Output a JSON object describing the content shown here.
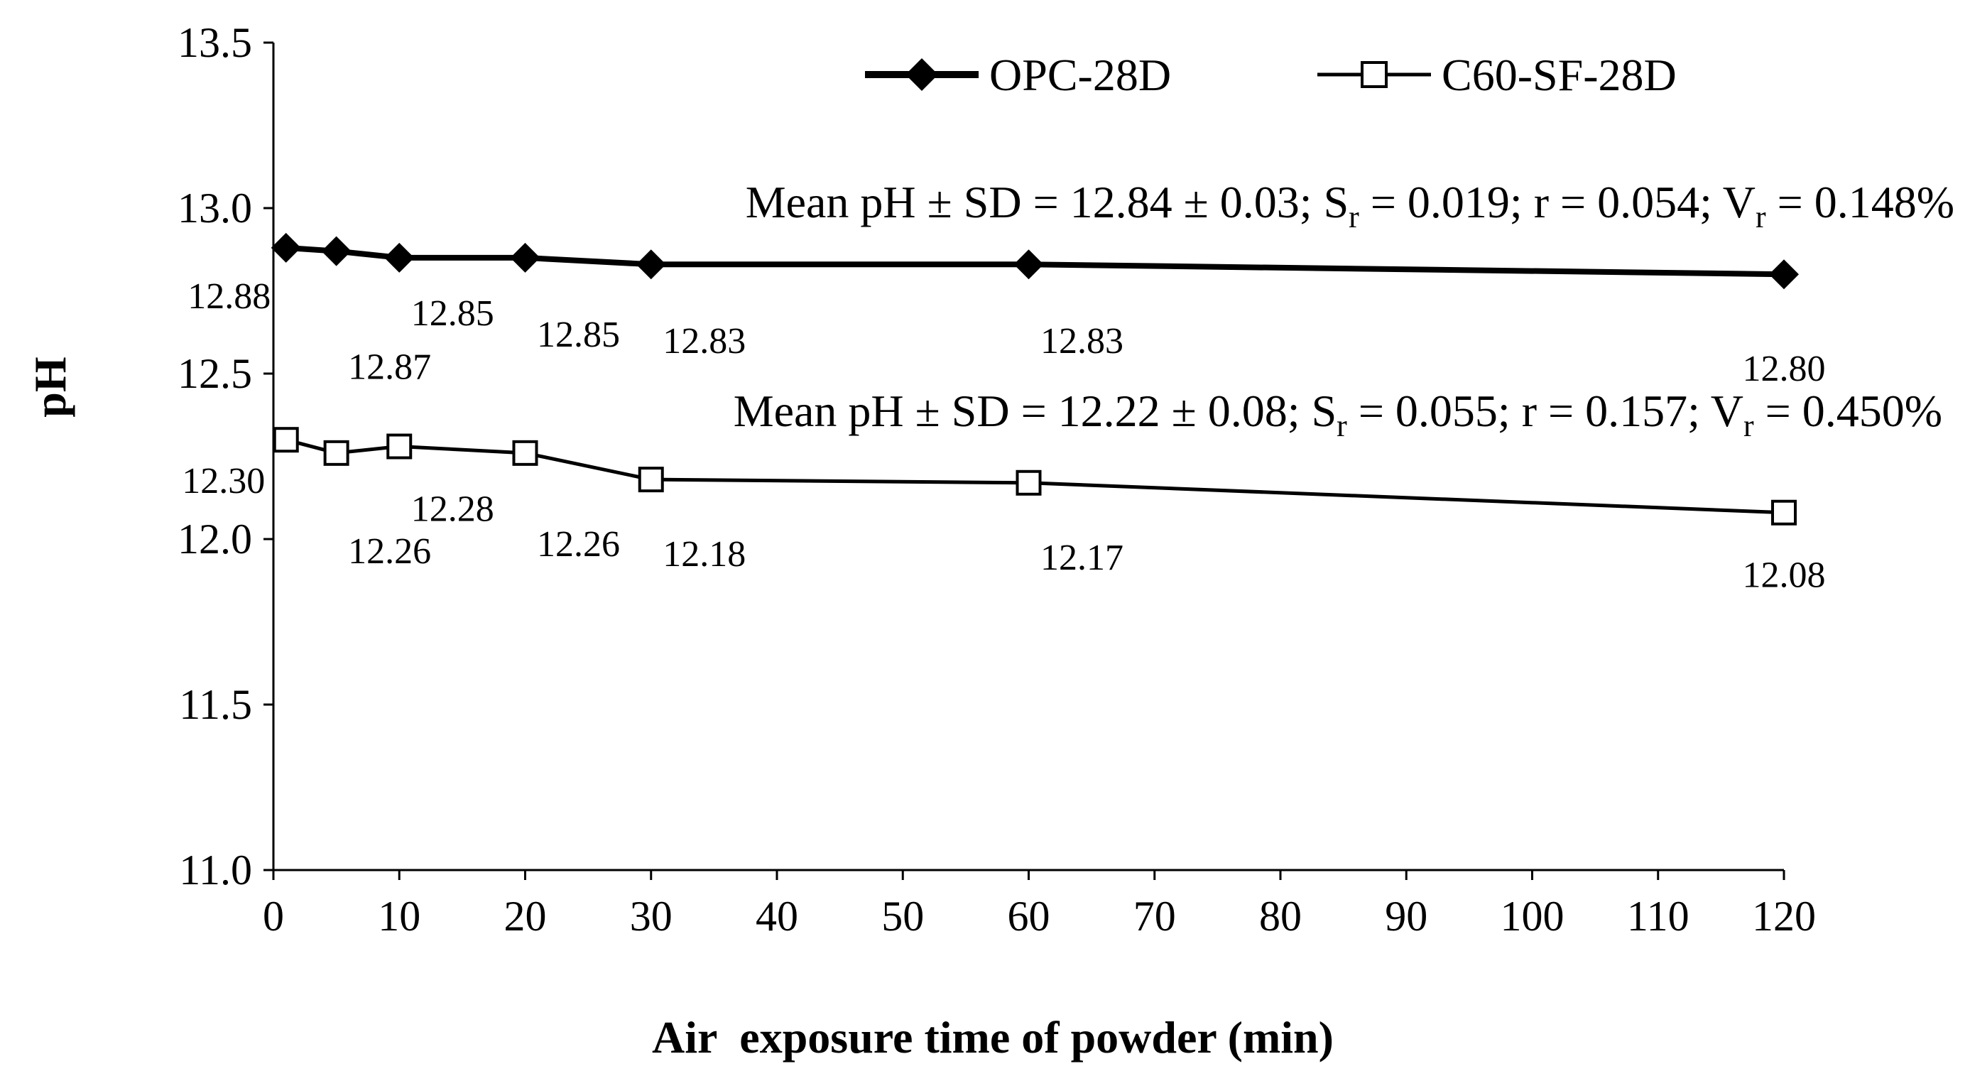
{
  "chart_data": {
    "type": "line",
    "xlabel": "Air  exposure time of powder (min)",
    "ylabel": "pH",
    "xlim": [
      0,
      120
    ],
    "ylim": [
      11.0,
      13.5
    ],
    "x_ticks": [
      "0",
      "10",
      "20",
      "30",
      "40",
      "50",
      "60",
      "70",
      "80",
      "90",
      "100",
      "110",
      "120"
    ],
    "y_ticks": [
      "11.0",
      "11.5",
      "12.0",
      "12.5",
      "13.0",
      "13.5"
    ],
    "grid": false,
    "legend_position": "top-right",
    "series": [
      {
        "name": "OPC-28D",
        "marker": "filled-diamond",
        "color": "#000000",
        "x": [
          1,
          5,
          10,
          20,
          30,
          60,
          120
        ],
        "y": [
          12.88,
          12.87,
          12.85,
          12.85,
          12.83,
          12.83,
          12.8
        ],
        "labels": [
          "12.88",
          "12.87",
          "12.85",
          "12.85",
          "12.83",
          "12.83",
          "12.80"
        ],
        "stats": {
          "lead": "Mean pH ± SD = 12.84 ± 0.03; S",
          "sr_sub": "r",
          "mid": " = 0.019; r = 0.054; V",
          "vr_sub": "r",
          "tail": " = 0.148%"
        }
      },
      {
        "name": "C60-SF-28D",
        "marker": "open-square",
        "color": "#000000",
        "x": [
          1,
          5,
          10,
          20,
          30,
          60,
          120
        ],
        "y": [
          12.3,
          12.26,
          12.28,
          12.26,
          12.18,
          12.17,
          12.08
        ],
        "labels": [
          "12.30",
          "12.26",
          "12.28",
          "12.26",
          "12.18",
          "12.17",
          "12.08"
        ],
        "stats": {
          "lead": "Mean pH ± SD = 12.22 ± 0.08; S",
          "sr_sub": "r",
          "mid": " = 0.055; r = 0.157; V",
          "vr_sub": "r",
          "tail": " = 0.450%"
        }
      }
    ]
  }
}
